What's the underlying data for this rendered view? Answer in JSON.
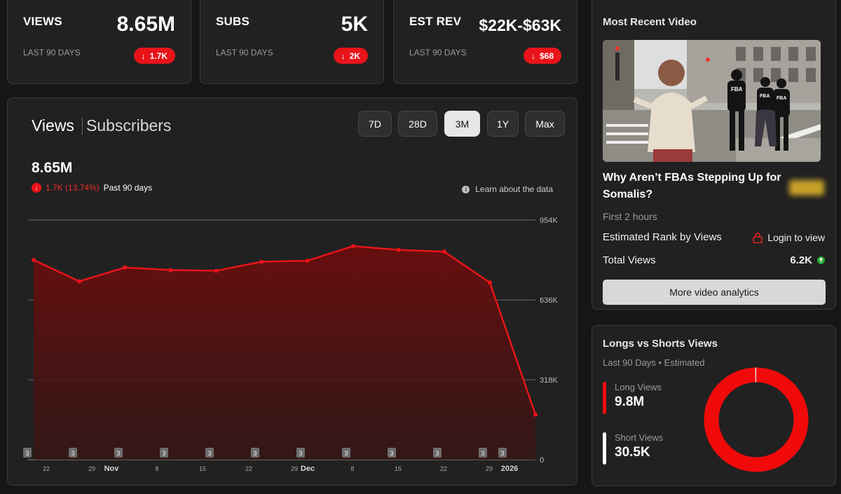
{
  "stats": [
    {
      "label": "VIEWS",
      "value": "8.65M",
      "sub": "LAST 90 DAYS",
      "change": "1.7K"
    },
    {
      "label": "SUBS",
      "value": "5K",
      "sub": "LAST 90 DAYS",
      "change": "2K"
    },
    {
      "label": "EST REV",
      "value": "$22K-$63K",
      "sub": "LAST 90 DAYS",
      "change": "$68"
    }
  ],
  "chart_panel": {
    "tab_views": "Views",
    "tab_subscribers": "Subscribers",
    "ranges": [
      "7D",
      "28D",
      "3M",
      "1Y",
      "Max"
    ],
    "active_range": "3M",
    "total": "8.65M",
    "change": "1.7K (13.74%)",
    "period": "Past 90 days",
    "learn_label": "Learn about the data"
  },
  "chart_data": {
    "type": "area",
    "title": "",
    "xlabel": "",
    "ylabel": "",
    "ylim": [
      0,
      954000
    ],
    "y_ticks": [
      "954K",
      "636K",
      "318K",
      "0"
    ],
    "y_tick_values": [
      954000,
      636000,
      318000,
      0
    ],
    "x_tick_labels": [
      {
        "text": "22",
        "bold": false
      },
      {
        "text": "29",
        "bold": false
      },
      {
        "text": "Nov",
        "bold": true
      },
      {
        "text": "8",
        "bold": false
      },
      {
        "text": "15",
        "bold": false
      },
      {
        "text": "22",
        "bold": false
      },
      {
        "text": "29",
        "bold": false
      },
      {
        "text": "Dec",
        "bold": true
      },
      {
        "text": "8",
        "bold": false
      },
      {
        "text": "15",
        "bold": false
      },
      {
        "text": "22",
        "bold": false
      },
      {
        "text": "29",
        "bold": false
      },
      {
        "text": "2026",
        "bold": true
      }
    ],
    "series": [
      {
        "values": [
          795000,
          710000,
          765000,
          755000,
          752000,
          788000,
          792000,
          850000,
          835000,
          828000,
          705000,
          180000
        ]
      }
    ],
    "markers": [
      "3",
      "3",
      "3",
      "3",
      "3",
      "3",
      "3",
      "3",
      "3",
      "3",
      "3",
      "3"
    ],
    "grid": true,
    "color": "#e8141a"
  },
  "recent_video": {
    "section_title": "Most Recent Video",
    "thumbnail_icon": "video-thumbnail",
    "shirt_text": "FBA",
    "title": "Why Aren’t FBAs Stepping Up for Somalis?",
    "duration": "First 2 hours",
    "rank_label": "Estimated Rank by Views",
    "rank_action": "Login to view",
    "total_views_label": "Total Views",
    "total_views_value": "6.2K",
    "more_button": "More video analytics"
  },
  "longs_shorts": {
    "title": "Longs vs Shorts Views",
    "subtitle": "Last 90 Days • Estimated",
    "long_label": "Long Views",
    "long_value": "9.8M",
    "short_label": "Short Views",
    "short_value": "30.5K",
    "long_share": 0.997,
    "long_color": "#f00a0a",
    "short_color": "#ffffff"
  }
}
